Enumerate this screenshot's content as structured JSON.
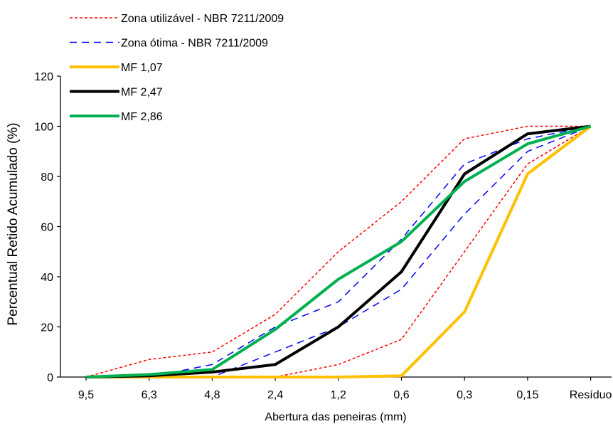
{
  "chart_data": {
    "type": "line",
    "xlabel": "Abertura das peneiras (mm)",
    "ylabel": "Percentual Retido Acumulado  (%)",
    "categories": [
      "9,5",
      "6,3",
      "4,8",
      "2,4",
      "1,2",
      "0,6",
      "0,3",
      "0,15",
      "Resíduo"
    ],
    "ylim": [
      0,
      120
    ],
    "yticks": [
      0,
      20,
      40,
      60,
      80,
      100,
      120
    ],
    "grid": false,
    "legend_position": "top-left",
    "series": [
      {
        "name": "Zona utilizável - NBR 7211/2009",
        "style": "dotted",
        "color": "#ff0000",
        "values": [
          0,
          7,
          10,
          25,
          50,
          70,
          95,
          100,
          100
        ]
      },
      {
        "name": "",
        "style": "dotted",
        "color": "#ff0000",
        "values": [
          0,
          0,
          0,
          0,
          5,
          15,
          50,
          85,
          100
        ]
      },
      {
        "name": "Zona ótima - NBR 7211/2009",
        "style": "dashed",
        "color": "#0000ff",
        "values": [
          0,
          0,
          5,
          20,
          30,
          55,
          85,
          95,
          100
        ]
      },
      {
        "name": "",
        "style": "dashed",
        "color": "#0000ff",
        "values": [
          0,
          0,
          0,
          10,
          20,
          35,
          65,
          90,
          100
        ]
      },
      {
        "name": "MF 1,07",
        "style": "solid",
        "color": "#ffc000",
        "values": [
          0,
          0,
          0,
          0,
          0,
          0.5,
          26,
          81,
          100
        ]
      },
      {
        "name": "MF 2,47",
        "style": "solid",
        "color": "#000000",
        "values": [
          0,
          0.5,
          2,
          5,
          20,
          42,
          81,
          97,
          100
        ]
      },
      {
        "name": "MF 2,86",
        "style": "solid",
        "color": "#00b050",
        "values": [
          0,
          1,
          3,
          19,
          39,
          54,
          78,
          93,
          100
        ]
      }
    ]
  }
}
